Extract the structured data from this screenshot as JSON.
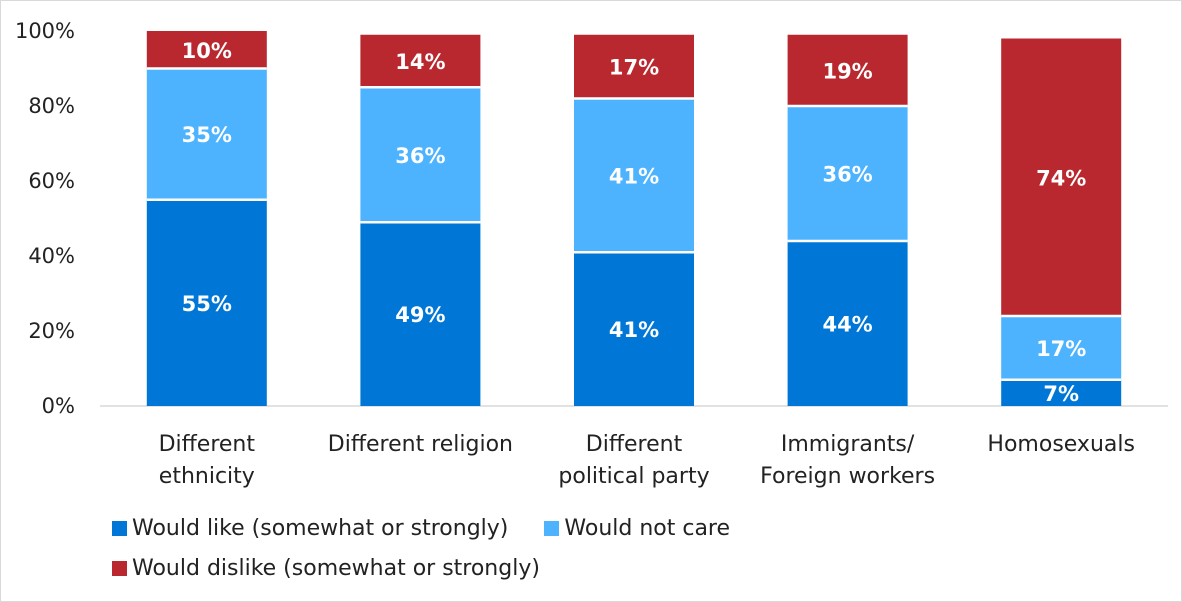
{
  "chart_data": {
    "type": "bar",
    "stacked": true,
    "categories": [
      [
        "Different",
        "ethnicity"
      ],
      [
        "Different religion"
      ],
      [
        "Different",
        "political party"
      ],
      [
        "Immigrants/",
        "Foreign workers"
      ],
      [
        "Homosexuals"
      ]
    ],
    "series": [
      {
        "name": "Would like (somewhat or strongly)",
        "values": [
          55,
          49,
          41,
          44,
          7
        ],
        "color": "#0077d6",
        "labels": [
          "55%",
          "49%",
          "41%",
          "44%",
          "7%"
        ]
      },
      {
        "name": "Would not care",
        "values": [
          35,
          36,
          41,
          36,
          17
        ],
        "color": "#4db3ff",
        "labels": [
          "35%",
          "36%",
          "41%",
          "36%",
          "17%"
        ]
      },
      {
        "name": "Would dislike (somewhat or strongly)",
        "values": [
          10,
          14,
          17,
          19,
          74
        ],
        "color": "#b8282e",
        "labels": [
          "10%",
          "14%",
          "17%",
          "19%",
          "74%"
        ]
      }
    ],
    "ylim": [
      0,
      100
    ],
    "yticks": [
      "0%",
      "20%",
      "40%",
      "60%",
      "80%",
      "100%"
    ],
    "legend_position": "bottom",
    "grid": false
  }
}
